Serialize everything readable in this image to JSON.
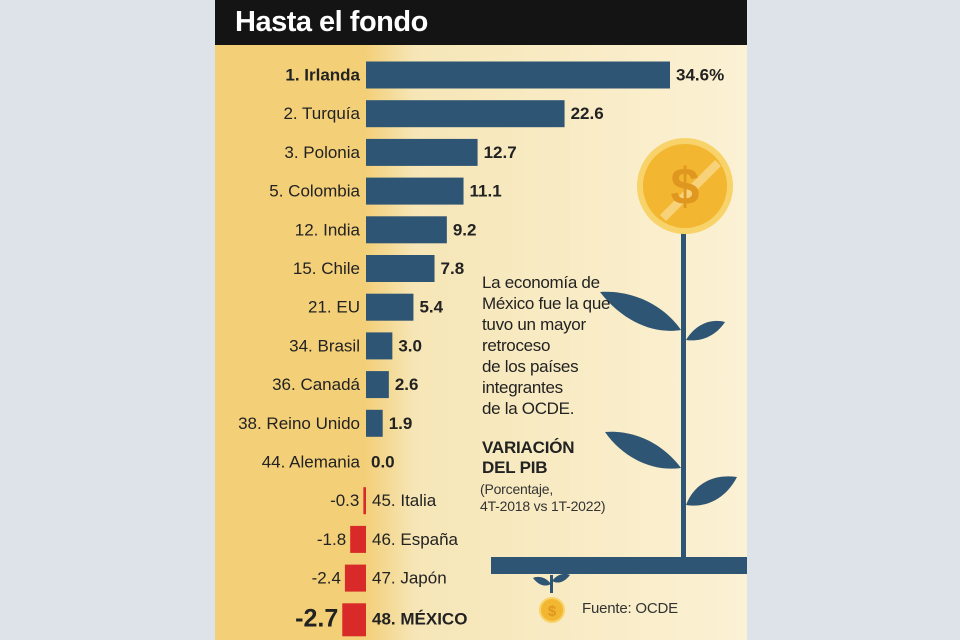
{
  "header": {
    "title": "Hasta el fondo"
  },
  "note": {
    "lines": [
      "La economía de",
      "México fue la que",
      "tuvo un mayor",
      "retroceso",
      "de los países",
      "integrantes",
      "de la OCDE."
    ]
  },
  "section": {
    "title_lines": [
      "VARIACIÓN",
      "DEL PIB"
    ],
    "subtitle_lines": [
      "(Porcentaje,",
      "4T-2018 vs 1T-2022)"
    ]
  },
  "source": "Fuente: OCDE",
  "colors": {
    "positive_bar": "#2e5573",
    "negative_bar": "#d82a29",
    "header": "#141414",
    "coin": "#f2b631"
  },
  "icons": [
    "dollar-coin-icon",
    "plant-stem-icon",
    "leaf-icon",
    "sprout-coin-icon"
  ],
  "chart_data": {
    "type": "bar",
    "orientation": "horizontal",
    "categories": [
      "1. Irlanda",
      "2. Turquía",
      "3. Polonia",
      "5. Colombia",
      "12. India",
      "15. Chile",
      "21. EU",
      "34. Brasil",
      "36. Canadá",
      "38. Reino Unido",
      "44. Alemania",
      "45. Italia",
      "46. España",
      "47. Japón",
      "48. MÉXICO"
    ],
    "values": [
      34.6,
      22.6,
      12.7,
      11.1,
      9.2,
      7.8,
      5.4,
      3.0,
      2.6,
      1.9,
      0.0,
      -0.3,
      -1.8,
      -2.4,
      -2.7
    ],
    "value_labels": [
      "34.6%",
      "22.6",
      "12.7",
      "11.1",
      "9.2",
      "7.8",
      "5.4",
      "3.0",
      "2.6",
      "1.9",
      "0.0",
      "-0.3",
      "-1.8",
      "-2.4",
      "-2.7"
    ],
    "title": "VARIACIÓN DEL PIB",
    "subtitle": "(Porcentaje, 4T-2018 vs 1T-2022)",
    "xlabel": "",
    "ylabel": "",
    "grid": false,
    "legend": "none"
  }
}
